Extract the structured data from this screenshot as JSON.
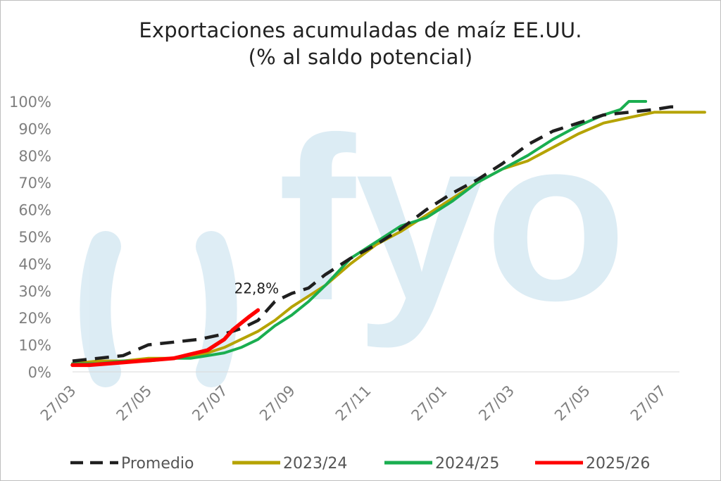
{
  "chart_data": {
    "type": "line",
    "title": "Exportaciones acumuladas de maíz EE.UU.",
    "subtitle": "(% al saldo potencial)",
    "ylim": [
      0,
      100
    ],
    "yticks": [
      "0%",
      "10%",
      "20%",
      "30%",
      "40%",
      "50%",
      "60%",
      "70%",
      "80%",
      "90%",
      "100%"
    ],
    "xlim": [
      0,
      72
    ],
    "xticks": [
      {
        "x": 0,
        "label": "27/03"
      },
      {
        "x": 9,
        "label": "27/05"
      },
      {
        "x": 18,
        "label": "27/07"
      },
      {
        "x": 26,
        "label": "27/09"
      },
      {
        "x": 35,
        "label": "27/11"
      },
      {
        "x": 44,
        "label": "27/01"
      },
      {
        "x": 52,
        "label": "27/03"
      },
      {
        "x": 61,
        "label": "27/05"
      },
      {
        "x": 70,
        "label": "27/07"
      }
    ],
    "series": [
      {
        "name": "Promedio",
        "color": "#1f1f1f",
        "style": "dashed",
        "x": [
          0,
          3,
          6,
          9,
          12,
          15,
          18,
          20,
          22,
          24,
          26,
          28,
          30,
          33,
          36,
          39,
          42,
          45,
          48,
          51,
          54,
          57,
          60,
          63,
          66,
          69,
          71,
          72
        ],
        "y": [
          4,
          5,
          6,
          10,
          11,
          12,
          14,
          16,
          19,
          26,
          29,
          31,
          36,
          42,
          47,
          53,
          60,
          66,
          71,
          77,
          84,
          89,
          92,
          95,
          96,
          97,
          98,
          98
        ]
      },
      {
        "name": "2023/24",
        "color": "#b5a300",
        "style": "solid",
        "x": [
          0,
          3,
          6,
          9,
          12,
          14,
          16,
          18,
          20,
          22,
          24,
          26,
          28,
          30,
          33,
          36,
          39,
          42,
          45,
          48,
          51,
          54,
          57,
          60,
          63,
          66,
          69,
          72,
          75
        ],
        "y": [
          3,
          4,
          4,
          5,
          5,
          6,
          7,
          9,
          12,
          15,
          19,
          24,
          28,
          32,
          40,
          47,
          52,
          58,
          64,
          70,
          75,
          78,
          83,
          88,
          92,
          94,
          96,
          96,
          96
        ]
      },
      {
        "name": "2024/25",
        "color": "#1aae50",
        "style": "solid",
        "x": [
          0,
          3,
          6,
          9,
          12,
          14,
          16,
          18,
          20,
          22,
          24,
          26,
          28,
          30,
          33,
          36,
          39,
          42,
          45,
          48,
          51,
          54,
          57,
          60,
          63,
          65,
          66,
          68
        ],
        "y": [
          3,
          3,
          4,
          4,
          5,
          5,
          6,
          7,
          9,
          12,
          17,
          21,
          26,
          32,
          42,
          48,
          54,
          57,
          63,
          70,
          75,
          80,
          86,
          91,
          95,
          97,
          100,
          100
        ]
      },
      {
        "name": "2025/26",
        "color": "#ff0000",
        "style": "solid",
        "x": [
          0,
          2,
          4,
          6,
          8,
          10,
          12,
          14,
          16,
          17,
          18,
          19,
          20,
          21,
          22
        ],
        "y": [
          2.5,
          2.5,
          3,
          3.5,
          4,
          4.5,
          5,
          6.5,
          8,
          10,
          12,
          15.5,
          18,
          20.5,
          22.8
        ]
      }
    ],
    "annotation": {
      "text": "22,8%",
      "x": 22,
      "y": 22.8
    },
    "watermark": "fyo",
    "legend_position": "bottom",
    "grid": false
  }
}
